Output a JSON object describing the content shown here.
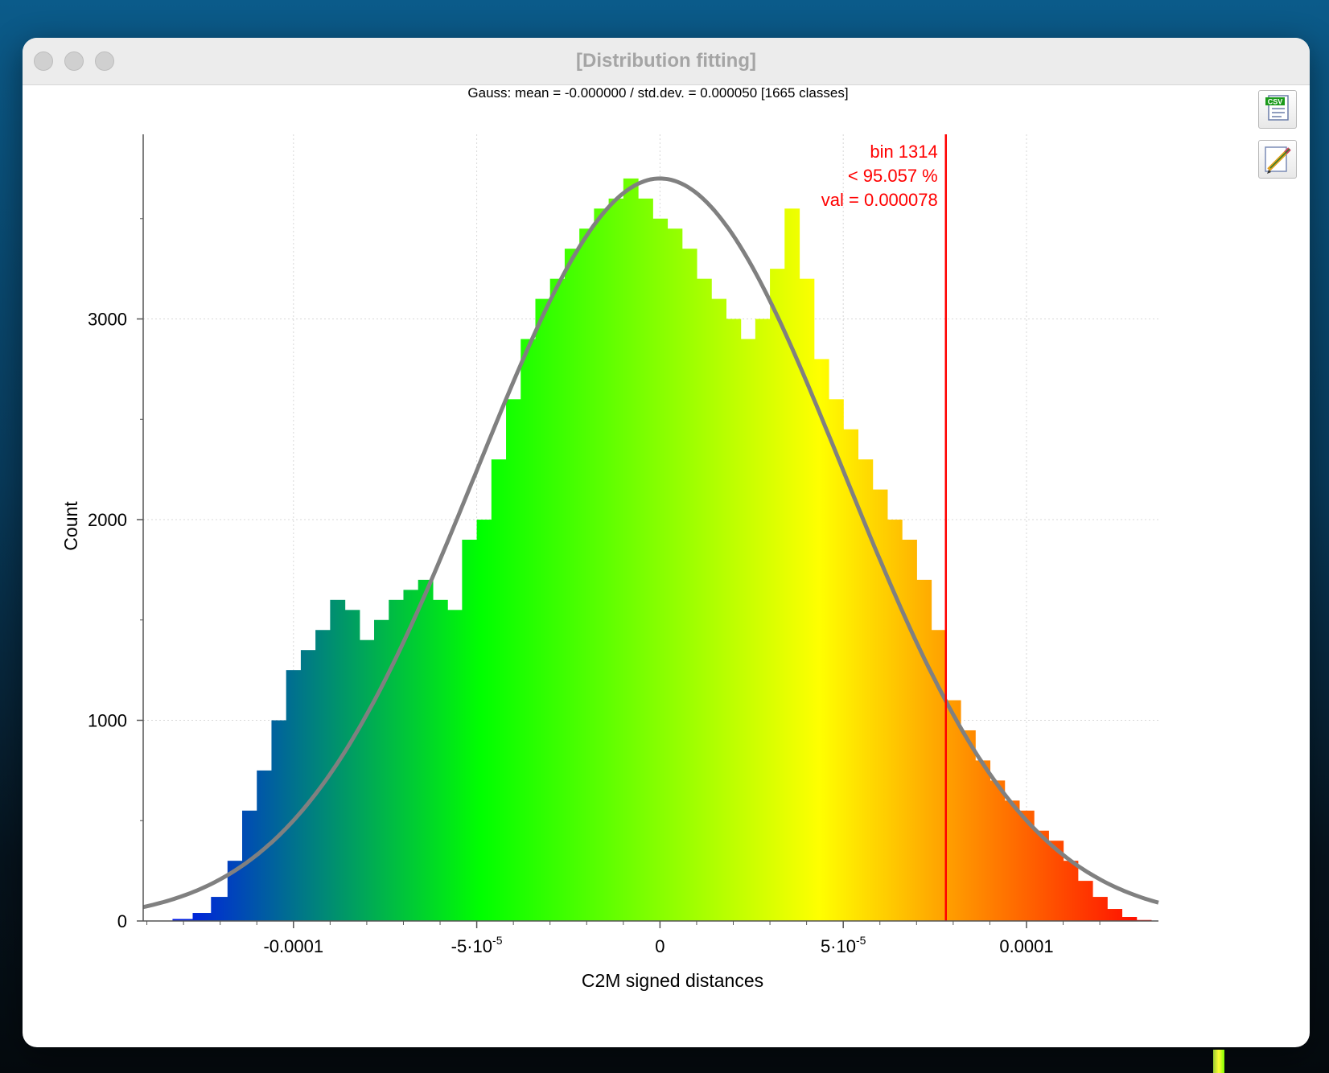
{
  "window": {
    "title": "[Distribution fitting]",
    "buttons": [
      {
        "icon": "csv-export-icon",
        "label": "CSV"
      },
      {
        "icon": "pencil-icon"
      }
    ]
  },
  "chart_data": {
    "type": "bar",
    "title": "Gauss: mean = -0.000000 / std.dev. = 0.000050 [1665 classes]",
    "xlabel": "C2M signed distances",
    "ylabel": "Count",
    "xlim": [
      -0.000141,
      0.000136
    ],
    "ylim": [
      0,
      3920
    ],
    "x_ticks": [
      {
        "value": -0.0001,
        "label": "-0.0001"
      },
      {
        "value": -5e-05,
        "label": "-5·10",
        "exp": "-5"
      },
      {
        "value": 0,
        "label": "0"
      },
      {
        "value": 5e-05,
        "label": "5·10",
        "exp": "-5"
      },
      {
        "value": 0.0001,
        "label": "0.0001"
      }
    ],
    "y_ticks": [
      0,
      1000,
      2000,
      3000
    ],
    "grid": true,
    "colormap": [
      "#0000ff",
      "#00ff00",
      "#ffff00",
      "#ff0000"
    ],
    "histogram": {
      "x": [
        -0.000136,
        -0.00013,
        -0.000125,
        -0.00012,
        -0.000116,
        -0.000112,
        -0.000108,
        -0.000104,
        -0.0001,
        -9.6e-05,
        -9.2e-05,
        -8.8e-05,
        -8.4e-05,
        -8e-05,
        -7.6e-05,
        -7.2e-05,
        -6.8e-05,
        -6.4e-05,
        -6e-05,
        -5.6e-05,
        -5.2e-05,
        -4.8e-05,
        -4.4e-05,
        -4e-05,
        -3.6e-05,
        -3.2e-05,
        -2.8e-05,
        -2.4e-05,
        -2e-05,
        -1.6e-05,
        -1.2e-05,
        -8e-06,
        -4e-06,
        0.0,
        4e-06,
        8e-06,
        1.2e-05,
        1.6e-05,
        2e-05,
        2.4e-05,
        2.8e-05,
        3.2e-05,
        3.6e-05,
        4e-05,
        4.4e-05,
        4.8e-05,
        5.2e-05,
        5.6e-05,
        6e-05,
        6.4e-05,
        6.8e-05,
        7.2e-05,
        7.6e-05,
        8e-05,
        8.4e-05,
        8.8e-05,
        9.2e-05,
        9.6e-05,
        0.0001,
        0.000104,
        0.000108,
        0.000112,
        0.000116,
        0.00012,
        0.000124,
        0.000128,
        0.000132
      ],
      "counts": [
        0,
        10,
        40,
        120,
        300,
        550,
        750,
        1000,
        1250,
        1350,
        1450,
        1600,
        1550,
        1400,
        1500,
        1600,
        1650,
        1700,
        1600,
        1550,
        1900,
        2000,
        2300,
        2600,
        2900,
        3100,
        3200,
        3350,
        3450,
        3550,
        3600,
        3700,
        3600,
        3500,
        3450,
        3350,
        3200,
        3100,
        3000,
        2900,
        3000,
        3250,
        3550,
        3200,
        2800,
        2600,
        2450,
        2300,
        2150,
        2000,
        1900,
        1700,
        1450,
        1100,
        950,
        800,
        700,
        600,
        550,
        450,
        400,
        300,
        200,
        120,
        60,
        20,
        5
      ]
    },
    "gauss_fit": {
      "mean": 0,
      "std": 5e-05,
      "peak": 3700
    },
    "marker": {
      "x": 7.8e-05,
      "labels": [
        "bin 1314",
        "< 95.057 %",
        "val = 0.000078"
      ],
      "color": "#ff0000"
    }
  }
}
